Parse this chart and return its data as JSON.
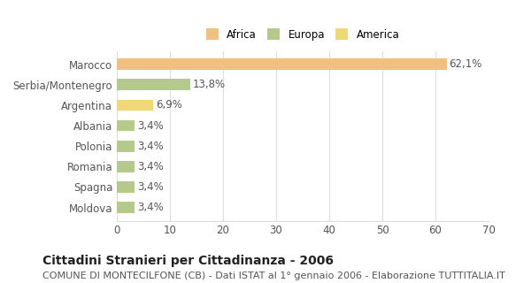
{
  "categories": [
    "Marocco",
    "Serbia/Montenegro",
    "Argentina",
    "Albania",
    "Polonia",
    "Romania",
    "Spagna",
    "Moldova"
  ],
  "values": [
    62.1,
    13.8,
    6.9,
    3.4,
    3.4,
    3.4,
    3.4,
    3.4
  ],
  "labels": [
    "62,1%",
    "13,8%",
    "6,9%",
    "3,4%",
    "3,4%",
    "3,4%",
    "3,4%",
    "3,4%"
  ],
  "colors": [
    "#f0c080",
    "#b5c98a",
    "#f0d878",
    "#b5c98a",
    "#b5c98a",
    "#b5c98a",
    "#b5c98a",
    "#b5c98a"
  ],
  "legend": [
    {
      "label": "Africa",
      "color": "#f0c080"
    },
    {
      "label": "Europa",
      "color": "#b5c98a"
    },
    {
      "label": "America",
      "color": "#f0d878"
    }
  ],
  "xlim": [
    0,
    70
  ],
  "xticks": [
    0,
    10,
    20,
    30,
    40,
    50,
    60,
    70
  ],
  "title": "Cittadini Stranieri per Cittadinanza - 2006",
  "subtitle": "COMUNE DI MONTECILFONE (CB) - Dati ISTAT al 1° gennaio 2006 - Elaborazione TUTTITALIA.IT",
  "bar_height": 0.55,
  "background_color": "#ffffff",
  "grid_color": "#dddddd",
  "label_fontsize": 8.5,
  "tick_fontsize": 8.5,
  "title_fontsize": 10,
  "subtitle_fontsize": 8
}
